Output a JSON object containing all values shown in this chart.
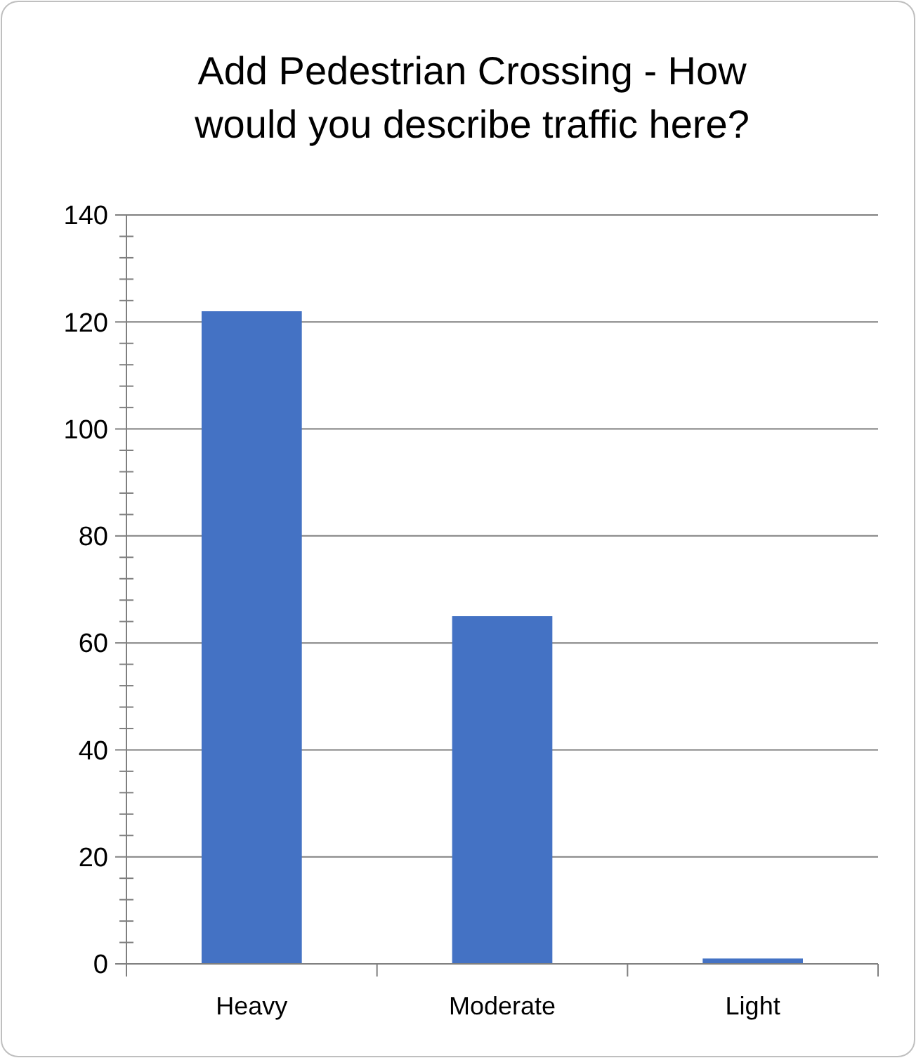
{
  "chart_data": {
    "type": "bar",
    "title": "Add Pedestrian Crossing - How would you describe traffic here?",
    "categories": [
      "Heavy",
      "Moderate",
      "Light"
    ],
    "values": [
      122,
      65,
      1
    ],
    "color": "#4472c4",
    "ylim": [
      0,
      140
    ],
    "yticks": [
      0,
      {
        "value": 4,
        "label": null
      },
      {
        "value": 8,
        "label": null
      },
      {
        "value": 12,
        "label": null
      },
      {
        "value": 16,
        "label": null
      },
      20,
      {
        "value": 24,
        "label": null
      },
      {
        "value": 28,
        "label": null
      },
      {
        "value": 32,
        "label": null
      },
      {
        "value": 36,
        "label": null
      },
      40,
      {
        "value": 44,
        "label": null
      },
      {
        "value": 48,
        "label": null
      },
      {
        "value": 52,
        "label": null
      },
      {
        "value": 56,
        "label": null
      },
      60,
      {
        "value": 64,
        "label": null
      },
      {
        "value": 68,
        "label": null
      },
      {
        "value": 72,
        "label": null
      },
      {
        "value": 76,
        "label": null
      },
      80,
      {
        "value": 84,
        "label": null
      },
      {
        "value": 88,
        "label": null
      },
      {
        "value": 92,
        "label": null
      },
      {
        "value": 96,
        "label": null
      },
      100,
      {
        "value": 104,
        "label": null
      },
      {
        "value": 108,
        "label": null
      },
      {
        "value": 112,
        "label": null
      },
      {
        "value": 116,
        "label": null
      },
      120,
      {
        "value": 124,
        "label": null
      },
      {
        "value": 128,
        "label": null
      },
      {
        "value": 132,
        "label": null
      },
      {
        "value": 136,
        "label": null
      },
      140
    ],
    "grid": "y"
  }
}
